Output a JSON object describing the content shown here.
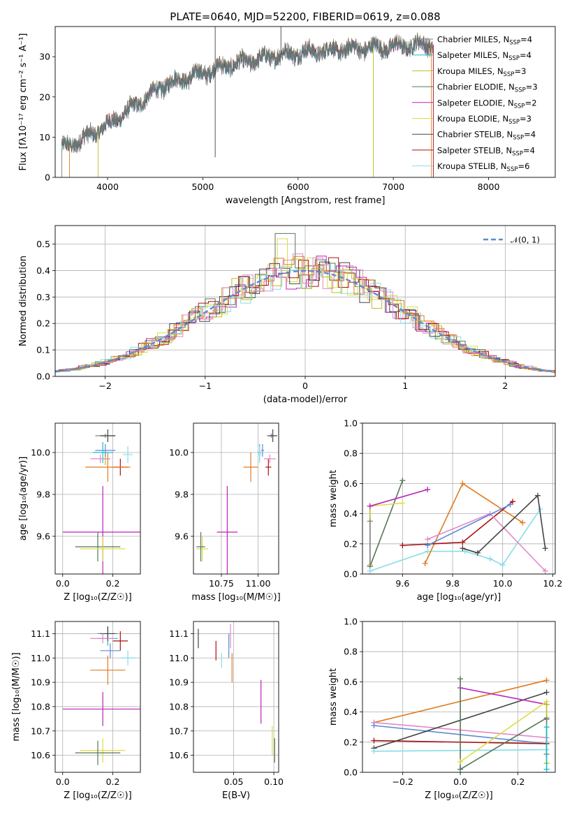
{
  "figure_title": "PLATE=0640, MJD=52200, FIBERID=0619, z=0.088",
  "colors": {
    "Chabrier MILES": "#7f7f7f",
    "Salpeter MILES": "#17becf",
    "Kroupa MILES": "#bcbd22",
    "Chabrier ELODIE": "#557755",
    "Salpeter ELODIE": "#bb22bb",
    "Kroupa ELODIE": "#dddd44",
    "Chabrier STELIB": "#444444",
    "Salpeter STELIB": "#aa1111",
    "Kroupa STELIB": "#88dde8",
    "normal": "#5b8bd6"
  },
  "chart_data": [
    {
      "id": "spectrum",
      "type": "line",
      "xlabel": "wavelength [Angstrom, rest frame]",
      "ylabel": "Flux [fλ10⁻¹⁷ erg cm⁻² s⁻¹ A⁻¹]",
      "xlim": [
        3450,
        8700
      ],
      "ylim": [
        0,
        37.5
      ],
      "xticks": [
        4000,
        5000,
        6000,
        7000,
        8000
      ],
      "yticks": [
        0,
        10,
        20,
        30
      ],
      "grid": false,
      "legend_position": "top-right",
      "legend": [
        {
          "series": "Chabrier MILES",
          "label": "Chabrier MILES, N",
          "sub": "SSP",
          "tail": "=4"
        },
        {
          "series": "Salpeter MILES",
          "label": "Salpeter MILES, N",
          "sub": "SSP",
          "tail": "=4"
        },
        {
          "series": "Kroupa MILES",
          "label": "Kroupa MILES, N",
          "sub": "SSP",
          "tail": "=3"
        },
        {
          "series": "Chabrier ELODIE",
          "label": "Chabrier ELODIE, N",
          "sub": "SSP",
          "tail": "=3"
        },
        {
          "series": "Salpeter ELODIE",
          "label": "Salpeter ELODIE, N",
          "sub": "SSP",
          "tail": "=2"
        },
        {
          "series": "Kroupa ELODIE",
          "label": "Kroupa ELODIE, N",
          "sub": "SSP",
          "tail": "=3"
        },
        {
          "series": "Chabrier STELIB",
          "label": "Chabrier STELIB, N",
          "sub": "SSP",
          "tail": "=4"
        },
        {
          "series": "Salpeter STELIB",
          "label": "Salpeter STELIB, N",
          "sub": "SSP",
          "tail": "=4"
        },
        {
          "series": "Kroupa STELIB",
          "label": "Kroupa STELIB, N",
          "sub": "SSP",
          "tail": "=6"
        }
      ],
      "trend_x": [
        3500,
        3700,
        4000,
        4300,
        4600,
        5000,
        5300,
        5700,
        6000,
        6300,
        6600,
        7000,
        7300,
        7420
      ],
      "trend_y": [
        7,
        9,
        13,
        18,
        23,
        26,
        28,
        30,
        31,
        31.5,
        32,
        32.5,
        33,
        33
      ]
    },
    {
      "id": "normed",
      "type": "bar",
      "xlabel": "(data-model)/error",
      "ylabel": "Normed distribution",
      "xlim": [
        -2.5,
        2.5
      ],
      "ylim": [
        0,
        0.57
      ],
      "xticks": [
        -2,
        -1,
        0,
        1,
        2
      ],
      "yticks": [
        0.0,
        0.1,
        0.2,
        0.3,
        0.4,
        0.5
      ],
      "grid": true,
      "legend_position": "top-right",
      "legend": [
        {
          "series": "normal",
          "label": "𝒩(0, 1)"
        }
      ],
      "normal_curve": {
        "mean": 0,
        "sd": 1,
        "style": "dashed"
      }
    },
    {
      "id": "age-vs-z",
      "type": "scatter",
      "xlabel": "Z [log₁₀(Z/Z☉)]",
      "ylabel": "age  [log₁₀(age/yr)]",
      "xlim": [
        -0.03,
        0.31
      ],
      "ylim": [
        9.42,
        10.14
      ],
      "xticks": [
        0.0,
        0.2
      ],
      "yticks": [
        9.6,
        9.8,
        10.0
      ],
      "grid": true,
      "points": [
        {
          "series": "Chabrier MILES",
          "x": 0.17,
          "y": 10.08,
          "xerr": 0.04,
          "yerr": 0.01
        },
        {
          "series": "Salpeter MILES",
          "x": 0.16,
          "y": 10.0,
          "xerr": 0.04,
          "yerr": 0.05
        },
        {
          "series": "Kroupa MILES",
          "x": 0.17,
          "y": 9.97,
          "xerr": 0.02,
          "yerr": 0.03
        },
        {
          "series": "Chabrier ELODIE",
          "x": 0.14,
          "y": 9.55,
          "xerr": 0.09,
          "yerr": 0.07
        },
        {
          "series": "Salpeter ELODIE",
          "x": 0.16,
          "y": 9.62,
          "xerr": 0.16,
          "yerr": 0.22
        },
        {
          "series": "Kroupa ELODIE",
          "x": 0.16,
          "y": 9.54,
          "xerr": 0.09,
          "yerr": 0.06
        },
        {
          "series": "Chabrier STELIB",
          "x": 0.18,
          "y": 10.08,
          "xerr": 0.03,
          "yerr": 0.03
        },
        {
          "series": "Salpeter STELIB",
          "x": 0.23,
          "y": 9.93,
          "xerr": 0.03,
          "yerr": 0.04
        },
        {
          "series": "Kroupa STELIB",
          "x": 0.26,
          "y": 9.99,
          "xerr": 0.02,
          "yerr": 0.04
        },
        {
          "series": "normal",
          "x": 0.17,
          "y": 10.01,
          "xerr": 0.04,
          "yerr": 0.03
        },
        {
          "series": "Orange",
          "x": 0.18,
          "y": 9.93,
          "xerr": 0.09,
          "yerr": 0.07
        },
        {
          "series": "Pink",
          "x": 0.15,
          "y": 9.97,
          "xerr": 0.04,
          "yerr": 0.02
        }
      ]
    },
    {
      "id": "age-vs-mass",
      "type": "scatter",
      "xlabel": "mass [log₁₀(M/M☉)]",
      "ylabel": "",
      "xlim": [
        10.56,
        11.14
      ],
      "ylim": [
        9.42,
        10.14
      ],
      "xticks": [
        10.75,
        11.0
      ],
      "yticks": [
        9.6,
        9.8,
        10.0
      ],
      "grid": true,
      "points": [
        {
          "series": "Chabrier MILES",
          "x": 11.09,
          "y": 10.08,
          "xerr": 0.03,
          "yerr": 0.01
        },
        {
          "series": "Salpeter MILES",
          "x": 11.01,
          "y": 10.0,
          "xerr": 0.01,
          "yerr": 0.04
        },
        {
          "series": "Kroupa ELODIE",
          "x": 10.62,
          "y": 9.54,
          "xerr": 0.04,
          "yerr": 0.06
        },
        {
          "series": "Chabrier ELODIE",
          "x": 10.61,
          "y": 9.55,
          "xerr": 0.03,
          "yerr": 0.07
        },
        {
          "series": "Salpeter ELODIE",
          "x": 10.79,
          "y": 9.62,
          "xerr": 0.07,
          "yerr": 0.22
        },
        {
          "series": "Chabrier STELIB",
          "x": 11.1,
          "y": 10.08,
          "xerr": 0.03,
          "yerr": 0.03
        },
        {
          "series": "Salpeter STELIB",
          "x": 11.07,
          "y": 9.93,
          "xerr": 0.02,
          "yerr": 0.04
        },
        {
          "series": "Kroupa STELIB",
          "x": 11.01,
          "y": 9.99,
          "xerr": 0.01,
          "yerr": 0.04
        },
        {
          "series": "normal",
          "x": 11.03,
          "y": 10.01,
          "xerr": 0.01,
          "yerr": 0.03
        },
        {
          "series": "Orange",
          "x": 10.95,
          "y": 9.93,
          "xerr": 0.05,
          "yerr": 0.07
        },
        {
          "series": "Pink",
          "x": 11.08,
          "y": 9.97,
          "xerr": 0.04,
          "yerr": 0.02
        }
      ]
    },
    {
      "id": "weight-vs-age",
      "type": "line",
      "xlabel": "age  [log₁₀(age/yr)]",
      "ylabel": "mass weight",
      "xlim": [
        9.44,
        10.21
      ],
      "ylim": [
        0,
        1
      ],
      "xticks": [
        9.6,
        9.8,
        10.0,
        10.2
      ],
      "yticks": [
        0.0,
        0.2,
        0.4,
        0.6,
        0.8,
        1.0
      ],
      "grid": true,
      "series": [
        {
          "name": "Chabrier ELODIE",
          "x": [
            9.47,
            9.6
          ],
          "y": [
            0.05,
            0.62
          ]
        },
        {
          "name": "Kroupa ELODIE",
          "x": [
            9.47,
            9.6
          ],
          "y": [
            0.45,
            0.47
          ]
        },
        {
          "name": "Kroupa MILES",
          "x": [
            9.47,
            9.47
          ],
          "y": [
            0.06,
            0.45
          ]
        },
        {
          "name": "Chabrier MILES",
          "x": [
            9.47,
            9.47
          ],
          "y": [
            0.35,
            0.05
          ]
        },
        {
          "name": "Salpeter ELODIE",
          "x": [
            9.47,
            9.7
          ],
          "y": [
            0.45,
            0.56
          ]
        },
        {
          "name": "Kroupa STELIB",
          "x": [
            9.47,
            9.7,
            9.85,
            9.95,
            10.0,
            10.15
          ],
          "y": [
            0.02,
            0.15,
            0.15,
            0.1,
            0.06,
            0.43
          ]
        },
        {
          "name": "Orange",
          "x": [
            9.69,
            9.84,
            10.08
          ],
          "y": [
            0.07,
            0.6,
            0.34
          ]
        },
        {
          "name": "Salpeter STELIB",
          "x": [
            9.6,
            9.84,
            10.04
          ],
          "y": [
            0.19,
            0.21,
            0.48
          ]
        },
        {
          "name": "Pink",
          "x": [
            9.7,
            9.95,
            10.17
          ],
          "y": [
            0.23,
            0.4,
            0.02
          ]
        },
        {
          "name": "normal",
          "x": [
            9.7,
            10.03
          ],
          "y": [
            0.19,
            0.46
          ]
        },
        {
          "name": "Chabrier STELIB",
          "x": [
            9.84,
            9.9,
            10.14,
            10.17
          ],
          "y": [
            0.17,
            0.14,
            0.52,
            0.17
          ]
        }
      ]
    },
    {
      "id": "mass-vs-z",
      "type": "scatter",
      "xlabel": "Z [log₁₀(Z/Z☉)]",
      "ylabel": "mass [log₁₀(M/M☉)]",
      "xlim": [
        -0.03,
        0.31
      ],
      "ylim": [
        10.53,
        11.15
      ],
      "xticks": [
        0.0,
        0.2
      ],
      "yticks": [
        10.6,
        10.7,
        10.8,
        10.9,
        11.0,
        11.1
      ],
      "grid": true,
      "points": [
        {
          "series": "Chabrier MILES",
          "x": 0.18,
          "y": 11.1,
          "xerr": 0.04,
          "yerr": 0.03
        },
        {
          "series": "Salpeter MILES",
          "x": 0.18,
          "y": 11.08,
          "xerr": 0.04,
          "yerr": 0.03
        },
        {
          "series": "Kroupa ELODIE",
          "x": 0.16,
          "y": 10.62,
          "xerr": 0.09,
          "yerr": 0.05
        },
        {
          "series": "Chabrier ELODIE",
          "x": 0.14,
          "y": 10.61,
          "xerr": 0.09,
          "yerr": 0.05
        },
        {
          "series": "Salpeter ELODIE",
          "x": 0.16,
          "y": 10.79,
          "xerr": 0.16,
          "yerr": 0.07
        },
        {
          "series": "Chabrier STELIB",
          "x": 0.18,
          "y": 11.1,
          "xerr": 0.03,
          "yerr": 0.03
        },
        {
          "series": "Salpeter STELIB",
          "x": 0.23,
          "y": 11.07,
          "xerr": 0.03,
          "yerr": 0.04
        },
        {
          "series": "Kroupa STELIB",
          "x": 0.26,
          "y": 11.0,
          "xerr": 0.03,
          "yerr": 0.03
        },
        {
          "series": "normal",
          "x": 0.19,
          "y": 11.03,
          "xerr": 0.04,
          "yerr": 0.03
        },
        {
          "series": "Orange",
          "x": 0.18,
          "y": 10.95,
          "xerr": 0.07,
          "yerr": 0.06
        },
        {
          "series": "Pink",
          "x": 0.16,
          "y": 11.08,
          "xerr": 0.05,
          "yerr": 0.02
        }
      ]
    },
    {
      "id": "mass-vs-ebv",
      "type": "scatter",
      "xlabel": "E(B-V)",
      "ylabel": "",
      "xlim": [
        0.0,
        0.106
      ],
      "ylim": [
        10.53,
        11.15
      ],
      "xticks": [
        0.05,
        0.1
      ],
      "yticks": [
        10.6,
        10.7,
        10.8,
        10.9,
        11.0,
        11.1
      ],
      "grid": true,
      "points": [
        {
          "series": "Chabrier STELIB",
          "x": 0.006,
          "y": 11.08,
          "xerr": 0,
          "yerr": 0.04
        },
        {
          "series": "Salpeter STELIB",
          "x": 0.028,
          "y": 11.03,
          "xerr": 0,
          "yerr": 0.04
        },
        {
          "series": "Kroupa STELIB",
          "x": 0.035,
          "y": 10.99,
          "xerr": 0,
          "yerr": 0.03
        },
        {
          "series": "normal",
          "x": 0.044,
          "y": 11.05,
          "xerr": 0,
          "yerr": 0.05
        },
        {
          "series": "Pink",
          "x": 0.046,
          "y": 11.09,
          "xerr": 0,
          "yerr": 0.05
        },
        {
          "series": "Orange",
          "x": 0.048,
          "y": 10.96,
          "xerr": 0,
          "yerr": 0.06
        },
        {
          "series": "Salpeter ELODIE",
          "x": 0.084,
          "y": 10.82,
          "xerr": 0,
          "yerr": 0.09
        },
        {
          "series": "Kroupa ELODIE",
          "x": 0.098,
          "y": 10.66,
          "xerr": 0,
          "yerr": 0.06
        },
        {
          "series": "Chabrier ELODIE",
          "x": 0.101,
          "y": 10.62,
          "xerr": 0,
          "yerr": 0.05
        }
      ]
    },
    {
      "id": "weight-vs-z",
      "type": "line",
      "xlabel": "Z [log₁₀(Z/Z☉)]",
      "ylabel": "mass weight",
      "xlim": [
        -0.34,
        0.33
      ],
      "ylim": [
        0,
        1
      ],
      "xticks": [
        -0.2,
        0.0,
        0.2
      ],
      "yticks": [
        0.0,
        0.2,
        0.4,
        0.6,
        0.8,
        1.0
      ],
      "grid": true,
      "series": [
        {
          "name": "Orange",
          "x": [
            -0.3,
            0.3
          ],
          "y": [
            0.33,
            0.61
          ]
        },
        {
          "name": "Pink",
          "x": [
            -0.3,
            0.3
          ],
          "y": [
            0.33,
            0.23
          ]
        },
        {
          "name": "normal",
          "x": [
            -0.3,
            0.3
          ],
          "y": [
            0.31,
            0.19
          ]
        },
        {
          "name": "Salpeter STELIB",
          "x": [
            -0.3,
            0.3
          ],
          "y": [
            0.21,
            0.19
          ]
        },
        {
          "name": "Chabrier STELIB",
          "x": [
            -0.3,
            0.3
          ],
          "y": [
            0.16,
            0.53
          ]
        },
        {
          "name": "Kroupa STELIB",
          "x": [
            -0.3,
            0.3
          ],
          "y": [
            0.14,
            0.15
          ]
        },
        {
          "name": "Salpeter ELODIE",
          "x": [
            0.0,
            0.3
          ],
          "y": [
            0.56,
            0.45
          ]
        },
        {
          "name": "Chabrier ELODIE",
          "x": [
            0.0,
            0.0,
            0.3
          ],
          "y": [
            0.62,
            0.02,
            0.36
          ]
        },
        {
          "name": "Kroupa ELODIE",
          "x": [
            0.0,
            0.3
          ],
          "y": [
            0.07,
            0.47
          ]
        },
        {
          "name": "Kroupa MILES",
          "x": [
            0.3,
            0.3
          ],
          "y": [
            0.06,
            0.45
          ]
        },
        {
          "name": "Chabrier MILES",
          "x": [
            0.3,
            0.3
          ],
          "y": [
            0.12,
            0.35
          ]
        },
        {
          "name": "Salpeter MILES",
          "x": [
            0.3,
            0.3
          ],
          "y": [
            0.02,
            0.3
          ]
        }
      ]
    }
  ]
}
